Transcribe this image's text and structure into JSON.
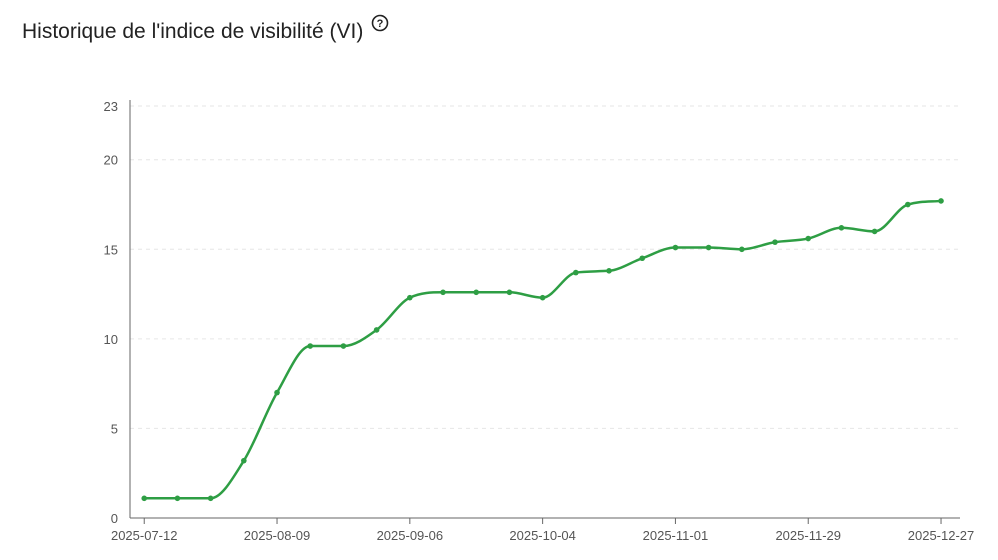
{
  "header": {
    "title": "Historique de l'indice de visibilité (VI)",
    "help_icon": "question-circle-icon"
  },
  "chart_data": {
    "type": "line",
    "title": "Historique de l'indice de visibilité (VI)",
    "xlabel": "",
    "ylabel": "",
    "x_ticks": [
      "2025-07-12",
      "2025-08-09",
      "2025-09-06",
      "2025-10-04",
      "2025-11-01",
      "2025-11-29",
      "2025-12-27"
    ],
    "y_ticks": [
      0,
      5,
      10,
      15,
      20,
      23
    ],
    "ylim": [
      0,
      23
    ],
    "xlim": [
      "2025-07-09",
      "2025-12-31"
    ],
    "grid": true,
    "series": [
      {
        "color": "#2e9e44",
        "x": [
          "2025-07-12",
          "2025-07-19",
          "2025-07-26",
          "2025-08-02",
          "2025-08-09",
          "2025-08-16",
          "2025-08-23",
          "2025-08-30",
          "2025-09-06",
          "2025-09-13",
          "2025-09-20",
          "2025-09-27",
          "2025-10-04",
          "2025-10-11",
          "2025-10-18",
          "2025-10-25",
          "2025-11-01",
          "2025-11-08",
          "2025-11-15",
          "2025-11-22",
          "2025-11-29",
          "2025-12-06",
          "2025-12-13",
          "2025-12-20",
          "2025-12-27"
        ],
        "values": [
          1.1,
          1.1,
          1.1,
          3.2,
          7.0,
          9.6,
          9.6,
          10.5,
          12.3,
          12.6,
          12.6,
          12.6,
          12.3,
          13.7,
          13.8,
          14.5,
          15.1,
          15.1,
          15.0,
          15.4,
          15.6,
          16.2,
          16.0,
          17.5,
          17.7
        ]
      }
    ]
  }
}
